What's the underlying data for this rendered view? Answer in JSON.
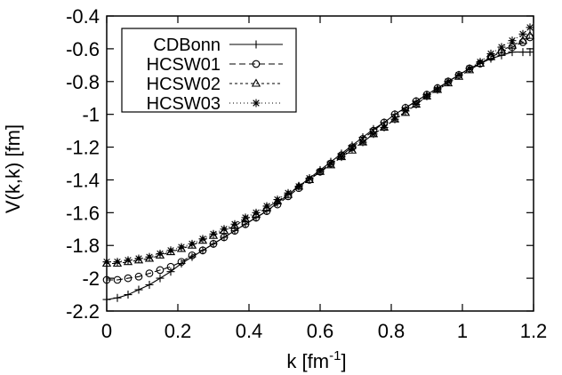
{
  "chart_data": {
    "type": "line",
    "xlabel": "k [fm",
    "xlabel_sup": "-1",
    "xlabel_end": "]",
    "ylabel": "V(k,k) [fm]",
    "xlim": [
      0,
      1.2
    ],
    "ylim": [
      -2.2,
      -0.4
    ],
    "xticks": [
      0,
      0.2,
      0.4,
      0.6,
      0.8,
      1,
      1.2
    ],
    "xtick_labels": [
      "0",
      "0.2",
      "0.4",
      "0.6",
      "0.8",
      "1",
      "1.2"
    ],
    "yticks": [
      -2.2,
      -2,
      -1.8,
      -1.6,
      -1.4,
      -1.2,
      -1,
      -0.8,
      -0.6,
      -0.4
    ],
    "ytick_labels": [
      "-2.2",
      "-2",
      "-1.8",
      "-1.6",
      "-1.4",
      "-1.2",
      "-1",
      "-0.8",
      "-0.6",
      "-0.4"
    ],
    "grid": false,
    "legend_position": "top-left",
    "series": [
      {
        "name": "CDBonn",
        "marker": "plus",
        "dash": "",
        "x": [
          0,
          0.03,
          0.06,
          0.09,
          0.12,
          0.15,
          0.18,
          0.21,
          0.24,
          0.27,
          0.3,
          0.33,
          0.36,
          0.39,
          0.42,
          0.45,
          0.48,
          0.51,
          0.54,
          0.57,
          0.6,
          0.63,
          0.66,
          0.69,
          0.72,
          0.75,
          0.78,
          0.81,
          0.84,
          0.87,
          0.9,
          0.93,
          0.96,
          0.99,
          1.02,
          1.05,
          1.08,
          1.11,
          1.14,
          1.17,
          1.19
        ],
        "y": [
          -2.13,
          -2.12,
          -2.1,
          -2.07,
          -2.04,
          -2.0,
          -1.96,
          -1.91,
          -1.87,
          -1.83,
          -1.79,
          -1.75,
          -1.71,
          -1.67,
          -1.63,
          -1.59,
          -1.54,
          -1.49,
          -1.44,
          -1.39,
          -1.34,
          -1.29,
          -1.24,
          -1.19,
          -1.14,
          -1.09,
          -1.05,
          -1.0,
          -0.96,
          -0.92,
          -0.88,
          -0.84,
          -0.8,
          -0.76,
          -0.72,
          -0.69,
          -0.66,
          -0.64,
          -0.62,
          -0.62,
          -0.62
        ]
      },
      {
        "name": "HCSW01",
        "marker": "circle",
        "dash": "7,4",
        "x": [
          0,
          0.03,
          0.06,
          0.09,
          0.12,
          0.15,
          0.18,
          0.21,
          0.24,
          0.27,
          0.3,
          0.33,
          0.36,
          0.39,
          0.42,
          0.45,
          0.48,
          0.51,
          0.54,
          0.57,
          0.6,
          0.63,
          0.66,
          0.69,
          0.72,
          0.75,
          0.78,
          0.81,
          0.84,
          0.87,
          0.9,
          0.93,
          0.96,
          0.99,
          1.02,
          1.05,
          1.08,
          1.11,
          1.14,
          1.17,
          1.19
        ],
        "y": [
          -2.01,
          -2.01,
          -2.0,
          -1.99,
          -1.97,
          -1.95,
          -1.93,
          -1.9,
          -1.86,
          -1.83,
          -1.79,
          -1.75,
          -1.71,
          -1.67,
          -1.63,
          -1.59,
          -1.55,
          -1.5,
          -1.45,
          -1.4,
          -1.35,
          -1.3,
          -1.25,
          -1.2,
          -1.15,
          -1.1,
          -1.05,
          -1.0,
          -0.96,
          -0.92,
          -0.88,
          -0.84,
          -0.8,
          -0.76,
          -0.72,
          -0.69,
          -0.65,
          -0.62,
          -0.59,
          -0.56,
          -0.53
        ]
      },
      {
        "name": "HCSW02",
        "marker": "triangle",
        "dash": "3,3",
        "x": [
          0,
          0.03,
          0.06,
          0.09,
          0.12,
          0.15,
          0.18,
          0.21,
          0.24,
          0.27,
          0.3,
          0.33,
          0.36,
          0.39,
          0.42,
          0.45,
          0.48,
          0.51,
          0.54,
          0.57,
          0.6,
          0.63,
          0.66,
          0.69,
          0.72,
          0.75,
          0.78,
          0.81,
          0.84,
          0.87,
          0.9,
          0.93,
          0.96,
          0.99,
          1.02,
          1.05,
          1.08,
          1.11,
          1.14,
          1.17,
          1.19
        ],
        "y": [
          -1.91,
          -1.91,
          -1.9,
          -1.89,
          -1.88,
          -1.86,
          -1.84,
          -1.82,
          -1.8,
          -1.77,
          -1.74,
          -1.71,
          -1.68,
          -1.64,
          -1.61,
          -1.57,
          -1.53,
          -1.49,
          -1.44,
          -1.4,
          -1.35,
          -1.31,
          -1.26,
          -1.22,
          -1.17,
          -1.12,
          -1.08,
          -1.03,
          -0.99,
          -0.94,
          -0.89,
          -0.85,
          -0.81,
          -0.77,
          -0.73,
          -0.69,
          -0.65,
          -0.61,
          -0.58,
          -0.55,
          -0.52
        ]
      },
      {
        "name": "HCSW03",
        "marker": "star",
        "dash": "1,3",
        "x": [
          0,
          0.03,
          0.06,
          0.09,
          0.12,
          0.15,
          0.18,
          0.21,
          0.24,
          0.27,
          0.3,
          0.33,
          0.36,
          0.39,
          0.42,
          0.45,
          0.48,
          0.51,
          0.54,
          0.57,
          0.6,
          0.63,
          0.66,
          0.69,
          0.72,
          0.75,
          0.78,
          0.81,
          0.84,
          0.87,
          0.9,
          0.93,
          0.96,
          0.99,
          1.02,
          1.05,
          1.08,
          1.11,
          1.14,
          1.17,
          1.19
        ],
        "y": [
          -1.9,
          -1.9,
          -1.89,
          -1.88,
          -1.87,
          -1.85,
          -1.83,
          -1.81,
          -1.79,
          -1.76,
          -1.73,
          -1.7,
          -1.67,
          -1.63,
          -1.6,
          -1.56,
          -1.52,
          -1.48,
          -1.44,
          -1.39,
          -1.35,
          -1.3,
          -1.26,
          -1.21,
          -1.17,
          -1.12,
          -1.08,
          -1.03,
          -0.98,
          -0.94,
          -0.89,
          -0.85,
          -0.8,
          -0.76,
          -0.72,
          -0.68,
          -0.63,
          -0.59,
          -0.55,
          -0.51,
          -0.47
        ]
      }
    ]
  }
}
